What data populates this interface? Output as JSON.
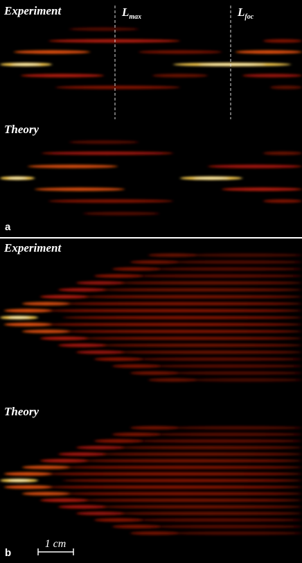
{
  "panels": [
    {
      "label": "a",
      "sections": [
        {
          "title": "Experiment",
          "markers": [
            {
              "symbol": "L",
              "subscript": "max"
            },
            {
              "symbol": "L",
              "subscript": "foc"
            }
          ]
        },
        {
          "title": "Theory"
        }
      ]
    },
    {
      "label": "b",
      "sections": [
        {
          "title": "Experiment"
        },
        {
          "title": "Theory"
        }
      ],
      "scale_bar": "1 cm"
    }
  ]
}
